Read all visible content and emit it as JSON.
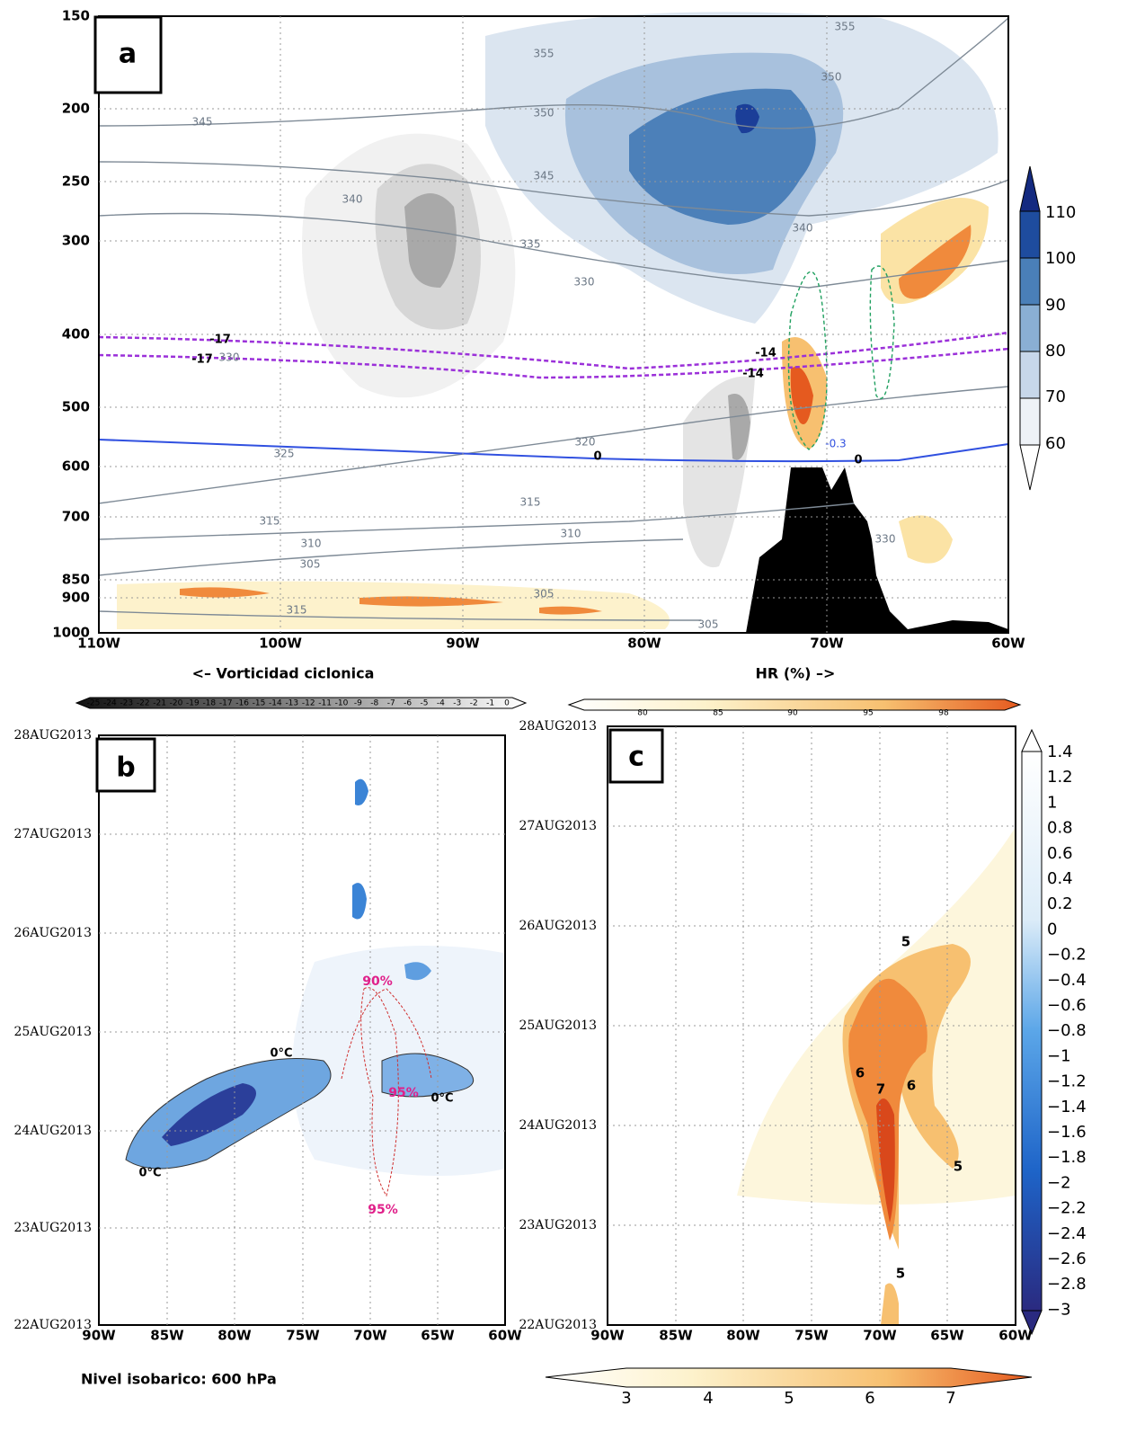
{
  "panel_a": {
    "label": "a",
    "y_ticks": [
      "150",
      "200",
      "250",
      "300",
      "400",
      "500",
      "600",
      "700",
      "850",
      "900",
      "1000"
    ],
    "x_ticks": [
      "110W",
      "100W",
      "90W",
      "80W",
      "70W",
      "60W"
    ],
    "left_caption": "<– Vorticidad ciclonica",
    "right_caption": "HR (%) –>",
    "colorbar_right": [
      "110",
      "100",
      "90",
      "80",
      "70",
      "60"
    ],
    "colorbar_vorticity": [
      "-25",
      "-24",
      "-23",
      "-22",
      "-21",
      "-20",
      "-19",
      "-18",
      "-17",
      "-16",
      "-15",
      "-14",
      "-13",
      "-12",
      "-11",
      "-10",
      "-9",
      "-8",
      "-7",
      "-6",
      "-5",
      "-4",
      "-3",
      "-2",
      "-1",
      "0"
    ],
    "colorbar_hr": [
      "80",
      "85",
      "90",
      "95",
      "98"
    ],
    "contour_labels": [
      "355",
      "355",
      "350",
      "350",
      "345",
      "345",
      "340",
      "340",
      "335",
      "330",
      "330",
      "325",
      "320",
      "315",
      "315",
      "310",
      "310",
      "305",
      "305",
      "305",
      "315",
      "330",
      "-17",
      "-14",
      "-17",
      "-14",
      "0",
      "0",
      "-0.3"
    ]
  },
  "panel_b": {
    "label": "b",
    "y_ticks": [
      "28AUG2013",
      "27AUG2013",
      "26AUG2013",
      "25AUG2013",
      "24AUG2013",
      "23AUG2013",
      "22AUG2013"
    ],
    "x_ticks": [
      "90W",
      "85W",
      "80W",
      "75W",
      "70W",
      "65W",
      "60W"
    ],
    "contour_labels": [
      "0°C",
      "0°C",
      "0°C",
      "90%",
      "95%",
      "95%"
    ],
    "caption": "Nivel isobarico: 600 hPa"
  },
  "panel_c": {
    "label": "c",
    "y_ticks": [
      "28AUG2013",
      "27AUG2013",
      "26AUG2013",
      "25AUG2013",
      "24AUG2013",
      "23AUG2013",
      "22AUG2013"
    ],
    "x_ticks": [
      "90W",
      "85W",
      "80W",
      "75W",
      "70W",
      "65W",
      "60W"
    ],
    "contour_labels": [
      "5",
      "6",
      "7",
      "6",
      "5",
      "5"
    ],
    "colorbar_right": [
      "1.4",
      "1.2",
      "1",
      "0.8",
      "0.6",
      "0.4",
      "0.2",
      "0",
      "−0.2",
      "−0.4",
      "−0.6",
      "−0.8",
      "−1",
      "−1.2",
      "−1.4",
      "−1.6",
      "−1.8",
      "−2",
      "−2.2",
      "−2.4",
      "−2.6",
      "−2.8",
      "−3"
    ],
    "colorbar_bottom": [
      "3",
      "4",
      "5",
      "6",
      "7"
    ]
  }
}
